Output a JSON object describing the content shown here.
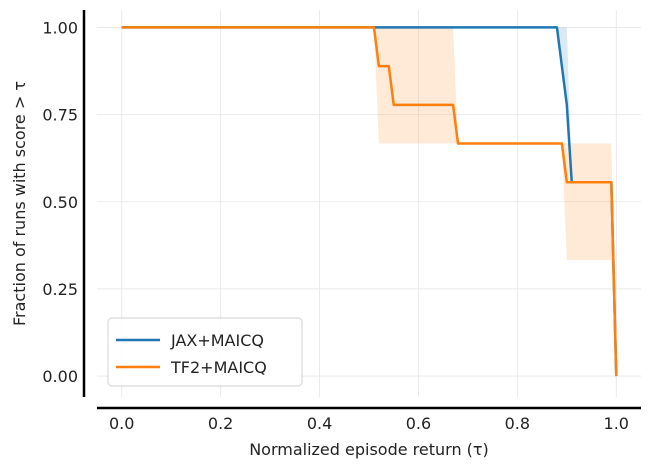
{
  "chart_data": {
    "type": "line",
    "xlabel": "Normalized episode return (τ)",
    "ylabel": "Fraction of runs with score > τ",
    "xlim": [
      -0.05,
      1.05
    ],
    "ylim": [
      -0.06,
      1.05
    ],
    "x_ticks": [
      0.0,
      0.2,
      0.4,
      0.6,
      0.8,
      1.0
    ],
    "x_tick_labels": [
      "0.0",
      "0.2",
      "0.4",
      "0.6",
      "0.8",
      "1.0"
    ],
    "y_ticks": [
      0.0,
      0.25,
      0.5,
      0.75,
      1.0
    ],
    "y_tick_labels": [
      "0.00",
      "0.25",
      "0.50",
      "0.75",
      "1.00"
    ],
    "grid": true,
    "legend_position": "lower-left",
    "series": [
      {
        "name": "JAX+MAICQ",
        "color": "#1f77b4",
        "x": [
          0.0,
          0.88,
          0.89,
          0.9,
          0.91,
          0.98,
          0.99,
          1.0
        ],
        "y": [
          1.0,
          1.0,
          0.889,
          0.778,
          0.556,
          0.556,
          0.556,
          0.0
        ],
        "band_lower": [
          1.0,
          1.0,
          0.889,
          0.778,
          0.556,
          0.556,
          0.556,
          0.0
        ],
        "band_upper": [
          1.0,
          1.0,
          1.0,
          1.0,
          0.556,
          0.556,
          0.556,
          0.0
        ]
      },
      {
        "name": "TF2+MAICQ",
        "color": "#ff7f0e",
        "x": [
          0.0,
          0.51,
          0.52,
          0.54,
          0.55,
          0.67,
          0.68,
          0.89,
          0.9,
          0.99,
          1.0
        ],
        "y": [
          1.0,
          1.0,
          0.889,
          0.889,
          0.778,
          0.778,
          0.667,
          0.667,
          0.556,
          0.556,
          0.0
        ],
        "band_lower": [
          1.0,
          1.0,
          0.667,
          0.667,
          0.667,
          0.667,
          0.667,
          0.667,
          0.333,
          0.333,
          0.0
        ],
        "band_upper": [
          1.0,
          1.0,
          1.0,
          1.0,
          1.0,
          1.0,
          0.667,
          0.667,
          0.667,
          0.667,
          0.0
        ]
      }
    ]
  }
}
